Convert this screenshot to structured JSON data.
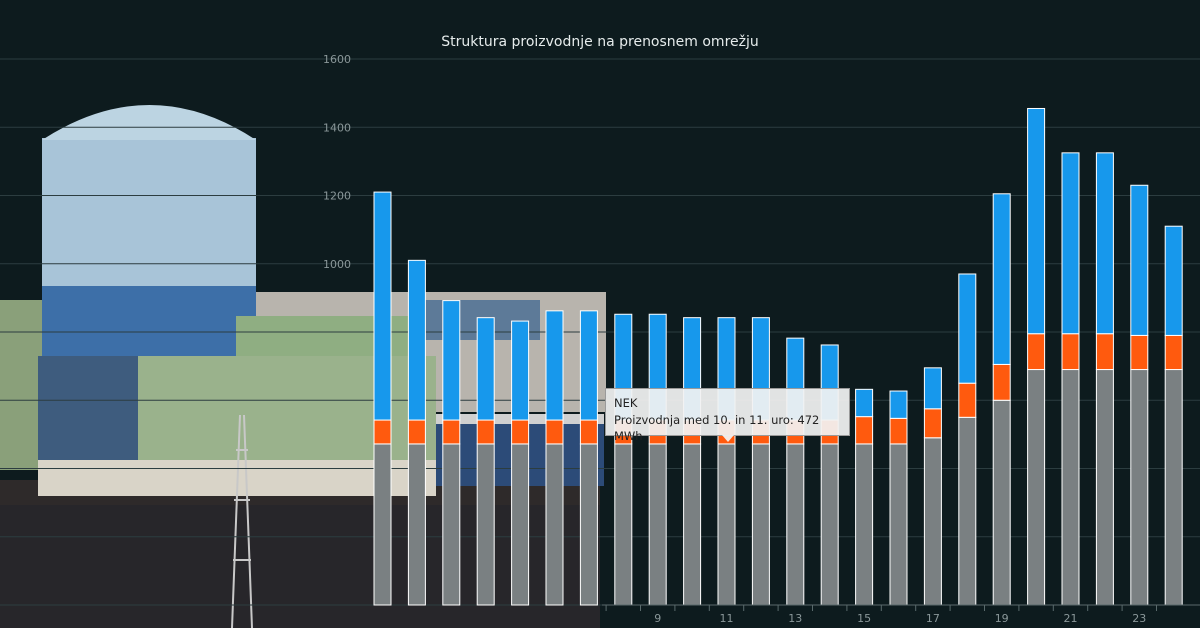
{
  "colors": {
    "background": "#0d1b1e",
    "grid": "#2c3d40",
    "axis_text": "#8a9799",
    "base_series": "#7a8082",
    "mid_series": "#ff5a0e",
    "top_series": "#1798ec"
  },
  "chart_data": {
    "type": "bar",
    "stacked": true,
    "title": "Struktura proizvodnje na prenosnem omrežju",
    "ylim": [
      0,
      1600
    ],
    "yticks": [
      0,
      200,
      400,
      600,
      800,
      1000,
      1200,
      1400,
      1600
    ],
    "ytick_labels": [
      "",
      "",
      "",
      "",
      "",
      "1000",
      "1200",
      "1400",
      "1600"
    ],
    "categories": [
      1,
      2,
      3,
      4,
      5,
      6,
      7,
      8,
      9,
      10,
      11,
      12,
      13,
      14,
      15,
      16,
      17,
      18,
      19,
      20,
      21,
      22,
      23,
      24
    ],
    "xtick_labels": [
      "9",
      "11",
      "13",
      "15",
      "17",
      "19",
      "21",
      "23"
    ],
    "xtick_hours": [
      9,
      11,
      13,
      15,
      17,
      19,
      21,
      23
    ],
    "grid": true,
    "series": [
      {
        "values": [
          472,
          472,
          472,
          472,
          472,
          472,
          472,
          472,
          472,
          472,
          472,
          472,
          472,
          472,
          472,
          472,
          490,
          550,
          600,
          690,
          690,
          690,
          690,
          690
        ]
      },
      {
        "values": [
          70,
          70,
          70,
          70,
          70,
          70,
          70,
          70,
          70,
          70,
          70,
          70,
          70,
          70,
          80,
          75,
          85,
          100,
          105,
          105,
          105,
          105,
          100,
          100
        ]
      },
      {
        "values": [
          668,
          468,
          350,
          300,
          290,
          320,
          320,
          310,
          310,
          300,
          300,
          300,
          240,
          220,
          80,
          80,
          120,
          320,
          500,
          660,
          530,
          530,
          440,
          320
        ]
      }
    ],
    "tooltip": {
      "title": "NEK",
      "text": "Proizvodnja med 10. in 11. uro: 472 MWh"
    }
  }
}
